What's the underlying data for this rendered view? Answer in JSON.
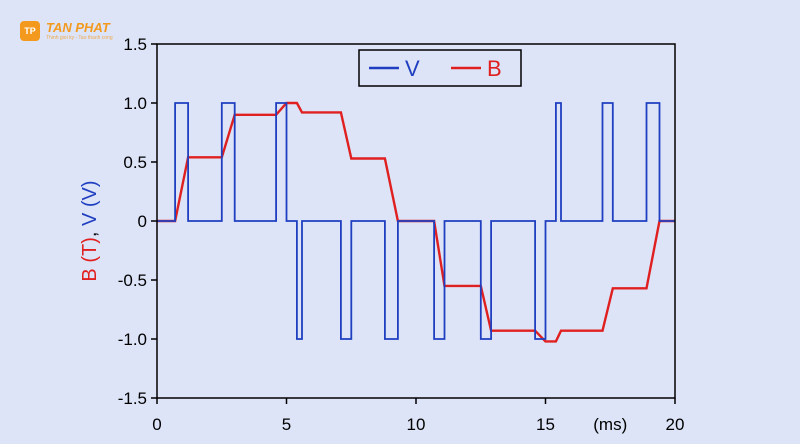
{
  "brand": {
    "logo_mark": "TP",
    "name": "TAN PHAT",
    "tagline": "Thinh gioi ky - Tao thanh cong"
  },
  "chart_data": {
    "type": "line",
    "title": "",
    "xlabel": "(ms)",
    "ylabel_parts": [
      {
        "text": "B (T)",
        "color": "#e02020"
      },
      {
        "text": ", ",
        "color": "#0a0a0a"
      },
      {
        "text": "V (V)",
        "color": "#1f3fc0"
      }
    ],
    "xlim": [
      0,
      20
    ],
    "ylim": [
      -1.5,
      1.5
    ],
    "xticks": [
      0,
      5,
      10,
      15,
      20
    ],
    "xtick_labels": [
      "0",
      "5",
      "10",
      "15",
      "20"
    ],
    "yticks": [
      1.5,
      1.0,
      0.5,
      0,
      -0.5,
      -1.0,
      -1.5
    ],
    "ytick_labels": [
      "1.5",
      "1.0",
      "0.5",
      "0",
      "-0.5",
      "-1.0",
      "-1.5"
    ],
    "grid": false,
    "legend": "top-center",
    "series": [
      {
        "name": "V",
        "color": "#1f3fc0",
        "x": [
          0,
          0.7,
          0.7,
          1.2,
          1.2,
          2.5,
          2.5,
          3.0,
          3.0,
          4.6,
          4.6,
          5.0,
          5.0,
          5.4,
          5.4,
          5.6,
          5.6,
          7.1,
          7.1,
          7.5,
          7.5,
          8.8,
          8.8,
          9.3,
          9.3,
          10.7,
          10.7,
          11.1,
          11.1,
          12.5,
          12.5,
          12.9,
          12.9,
          14.6,
          14.6,
          15.0,
          15.0,
          15.4,
          15.4,
          15.6,
          15.6,
          17.2,
          17.2,
          17.6,
          17.6,
          18.9,
          18.9,
          19.4,
          19.4,
          20.0
        ],
        "y": [
          0,
          0,
          1,
          1,
          0,
          0,
          1,
          1,
          0,
          0,
          1,
          1,
          0,
          0,
          -1,
          -1,
          0,
          0,
          -1,
          -1,
          0,
          0,
          -1,
          -1,
          0,
          0,
          -1,
          -1,
          0,
          0,
          -1,
          -1,
          0,
          0,
          -1,
          -1,
          0,
          0,
          1,
          1,
          0,
          0,
          1,
          1,
          0,
          0,
          1,
          1,
          0,
          0
        ]
      },
      {
        "name": "B",
        "color": "#e02020",
        "x": [
          0,
          0.7,
          1.2,
          2.5,
          3.0,
          4.6,
          5.0,
          5.4,
          5.6,
          7.1,
          7.5,
          8.8,
          9.3,
          10.7,
          11.1,
          12.5,
          12.9,
          14.6,
          15.0,
          15.4,
          15.6,
          17.2,
          17.6,
          18.9,
          19.4,
          20.0
        ],
        "y": [
          0,
          0,
          0.54,
          0.54,
          0.9,
          0.9,
          1.0,
          1.0,
          0.92,
          0.92,
          0.53,
          0.53,
          0,
          0,
          -0.55,
          -0.55,
          -0.93,
          -0.93,
          -1.02,
          -1.02,
          -0.93,
          -0.93,
          -0.57,
          -0.57,
          0,
          0
        ]
      }
    ]
  }
}
